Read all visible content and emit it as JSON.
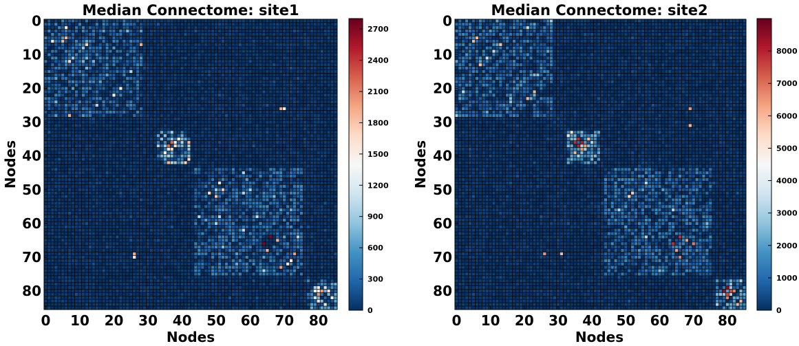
{
  "chart_data": [
    {
      "type": "heatmap",
      "title": "Median Connectome: site1",
      "xlabel": "Nodes",
      "ylabel": "Nodes",
      "n_nodes": 86,
      "xticks": [
        0,
        10,
        20,
        30,
        40,
        50,
        60,
        70,
        80
      ],
      "yticks": [
        0,
        10,
        20,
        30,
        40,
        50,
        60,
        70,
        80
      ],
      "colorbar": {
        "min": 0,
        "max": 2800,
        "ticks": [
          0,
          300,
          600,
          900,
          1200,
          1500,
          1800,
          2100,
          2400,
          2700
        ],
        "colormap": "RdBu_r"
      },
      "background_value": 80,
      "blocks": [
        {
          "rows": [
            0,
            29
          ],
          "cols": [
            0,
            29
          ],
          "level": 420
        },
        {
          "rows": [
            33,
            43
          ],
          "cols": [
            33,
            43
          ],
          "level": 850
        },
        {
          "rows": [
            44,
            76
          ],
          "cols": [
            44,
            76
          ],
          "level": 420
        },
        {
          "rows": [
            77,
            86
          ],
          "cols": [
            77,
            86
          ],
          "level": 850
        }
      ],
      "hotspots": [
        [
          36,
          37,
          2200
        ],
        [
          37,
          36,
          2200
        ],
        [
          37,
          38,
          1650
        ],
        [
          38,
          37,
          1650
        ],
        [
          35,
          39,
          1400
        ],
        [
          39,
          35,
          1400
        ],
        [
          36,
          38,
          1300
        ],
        [
          5,
          6,
          1900
        ],
        [
          6,
          5,
          1900
        ],
        [
          7,
          12,
          1700
        ],
        [
          12,
          7,
          1700
        ],
        [
          6,
          2,
          1500
        ],
        [
          2,
          6,
          1500
        ],
        [
          26,
          69,
          1950
        ],
        [
          69,
          26,
          1950
        ],
        [
          7,
          28,
          1900
        ],
        [
          28,
          7,
          1900
        ],
        [
          64,
          66,
          2700
        ],
        [
          66,
          64,
          2700
        ],
        [
          50,
          52,
          1800
        ],
        [
          52,
          50,
          1800
        ],
        [
          48,
          51,
          1650
        ],
        [
          51,
          48,
          1650
        ],
        [
          69,
          73,
          2000
        ],
        [
          73,
          69,
          2000
        ],
        [
          65,
          68,
          1900
        ],
        [
          68,
          65,
          1900
        ],
        [
          71,
          72,
          1550
        ],
        [
          80,
          81,
          2000
        ],
        [
          81,
          80,
          2000
        ],
        [
          80,
          83,
          1600
        ],
        [
          83,
          80,
          1600
        ],
        [
          79,
          80,
          1350
        ],
        [
          84,
          82,
          1300
        ],
        [
          20,
          22,
          1400
        ],
        [
          22,
          20,
          1400
        ],
        [
          26,
          70,
          1500
        ]
      ],
      "seed": 7
    },
    {
      "type": "heatmap",
      "title": "Median Connectome: site2",
      "xlabel": "Nodes",
      "ylabel": "Nodes",
      "n_nodes": 86,
      "xticks": [
        0,
        10,
        20,
        30,
        40,
        50,
        60,
        70,
        80
      ],
      "yticks": [
        0,
        10,
        20,
        30,
        40,
        50,
        60,
        70,
        80
      ],
      "colorbar": {
        "min": 0,
        "max": 9000,
        "ticks": [
          0,
          1000,
          2000,
          3000,
          4000,
          5000,
          6000,
          7000,
          8000
        ],
        "colormap": "RdBu_r"
      },
      "background_value": 260,
      "blocks": [
        {
          "rows": [
            0,
            29
          ],
          "cols": [
            0,
            29
          ],
          "level": 1350
        },
        {
          "rows": [
            33,
            43
          ],
          "cols": [
            33,
            43
          ],
          "level": 2700
        },
        {
          "rows": [
            44,
            76
          ],
          "cols": [
            44,
            76
          ],
          "level": 1350
        },
        {
          "rows": [
            77,
            86
          ],
          "cols": [
            77,
            86
          ],
          "level": 2700
        }
      ],
      "hotspots": [
        [
          36,
          37,
          8000
        ],
        [
          37,
          36,
          8000
        ],
        [
          37,
          38,
          6500
        ],
        [
          38,
          37,
          6500
        ],
        [
          35,
          39,
          6000
        ],
        [
          39,
          35,
          6000
        ],
        [
          36,
          35,
          7800
        ],
        [
          80,
          81,
          7500
        ],
        [
          81,
          80,
          7500
        ],
        [
          82,
          80,
          6800
        ],
        [
          80,
          82,
          6800
        ],
        [
          84,
          83,
          6000
        ],
        [
          79,
          80,
          8500
        ],
        [
          64,
          66,
          7800
        ],
        [
          66,
          64,
          7800
        ],
        [
          65,
          68,
          6400
        ],
        [
          68,
          65,
          6400
        ],
        [
          70,
          66,
          6800
        ],
        [
          6,
          5,
          6000
        ],
        [
          5,
          6,
          6000
        ],
        [
          7,
          13,
          5800
        ],
        [
          13,
          7,
          5800
        ],
        [
          26,
          69,
          6500
        ],
        [
          69,
          26,
          6500
        ],
        [
          31,
          69,
          6000
        ],
        [
          69,
          31,
          6000
        ],
        [
          21,
          23,
          6000
        ],
        [
          23,
          21,
          6000
        ],
        [
          51,
          52,
          5500
        ],
        [
          52,
          51,
          5500
        ]
      ],
      "seed": 13
    }
  ]
}
